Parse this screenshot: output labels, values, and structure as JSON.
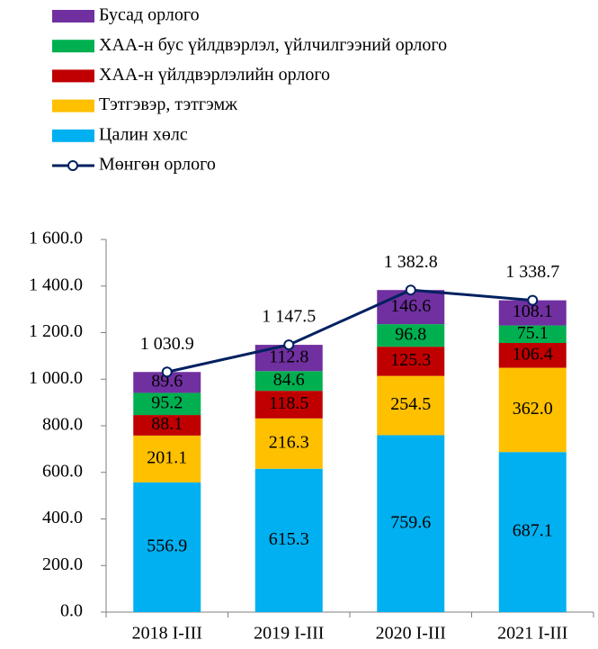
{
  "chart_data": {
    "type": "bar",
    "stacked": true,
    "categories": [
      "2018 I-III",
      "2019 I-III",
      "2020 I-III",
      "2021 I-III"
    ],
    "series": [
      {
        "name": "Цалин хөлс",
        "color": "#00b0f0",
        "values": [
          556.9,
          615.3,
          759.6,
          687.1
        ]
      },
      {
        "name": "Тэтгэвэр, тэтгэмж",
        "color": "#ffc000",
        "values": [
          201.1,
          216.3,
          254.5,
          362.0
        ],
        "value_labels": [
          "201.1",
          "216.3",
          "254.5",
          "362.0"
        ]
      },
      {
        "name": "ХАА-н үйлдвэрлэлийн орлого",
        "color": "#c00000",
        "values": [
          88.1,
          118.5,
          125.3,
          106.4
        ]
      },
      {
        "name": "ХАА-н бус үйлдвэрлэл, үйлчилгээний орлого",
        "color": "#00b050",
        "values": [
          95.2,
          84.6,
          96.8,
          75.1
        ]
      },
      {
        "name": "Бусад орлого",
        "color": "#7030a0",
        "values": [
          89.6,
          112.8,
          146.6,
          108.1
        ]
      },
      {
        "name": "Мөнгөн орлого",
        "color": "#002060",
        "type": "line",
        "values": [
          1030.9,
          1147.5,
          1382.8,
          1338.7
        ],
        "value_labels": [
          "1 030.9",
          "1 147.5",
          "1 382.8",
          "1 338.7"
        ]
      }
    ],
    "ylim": [
      0,
      1600
    ],
    "yticks": [
      {
        "value": 0,
        "label": "0.0"
      },
      {
        "value": 200,
        "label": "200.0"
      },
      {
        "value": 400,
        "label": "400.0"
      },
      {
        "value": 600,
        "label": "600.0"
      },
      {
        "value": 800,
        "label": "800.0"
      },
      {
        "value": 1000,
        "label": "1 000.0"
      },
      {
        "value": 1200,
        "label": "1 200.0"
      },
      {
        "value": 1400,
        "label": "1 400.0"
      },
      {
        "value": 1600,
        "label": "1 600.0"
      }
    ],
    "legend": "top"
  }
}
